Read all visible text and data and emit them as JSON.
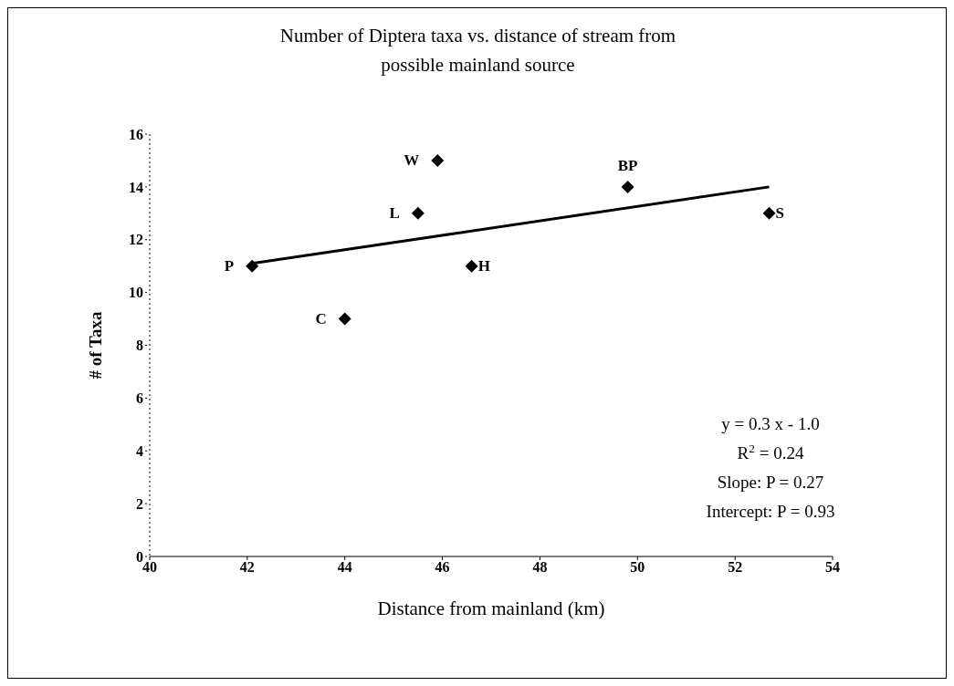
{
  "chart_data": {
    "type": "scatter",
    "title": "Number of Diptera taxa vs. distance of stream from possible mainland source",
    "xlabel": "Distance from mainland (km)",
    "ylabel": "# of Taxa",
    "xlim": [
      40,
      54
    ],
    "xticks": [
      40,
      42,
      44,
      46,
      48,
      50,
      52,
      54
    ],
    "ylim": [
      0,
      16
    ],
    "yticks": [
      0,
      2,
      4,
      6,
      8,
      10,
      12,
      14,
      16
    ],
    "grid": false,
    "series": [
      {
        "color": "#000000",
        "marker": "diamond",
        "x": [
          42.1,
          44.0,
          45.5,
          45.9,
          46.6,
          49.8,
          52.7
        ],
        "values": [
          11,
          9,
          13,
          15,
          11,
          14,
          13
        ],
        "value_labels": [
          "P",
          "C",
          "L",
          "W",
          "H",
          "BP",
          "S"
        ]
      },
      {
        "type": "line",
        "color": "#000000",
        "marker": "none",
        "x": [
          42.1,
          52.7
        ],
        "values": [
          11.1,
          14.0
        ]
      }
    ],
    "annotations": [
      "y = 0.3 x - 1.0",
      "R$^{2}$ = 0.24",
      "Slope:  P = 0.27",
      "Intercept:  P = 0.93"
    ]
  }
}
